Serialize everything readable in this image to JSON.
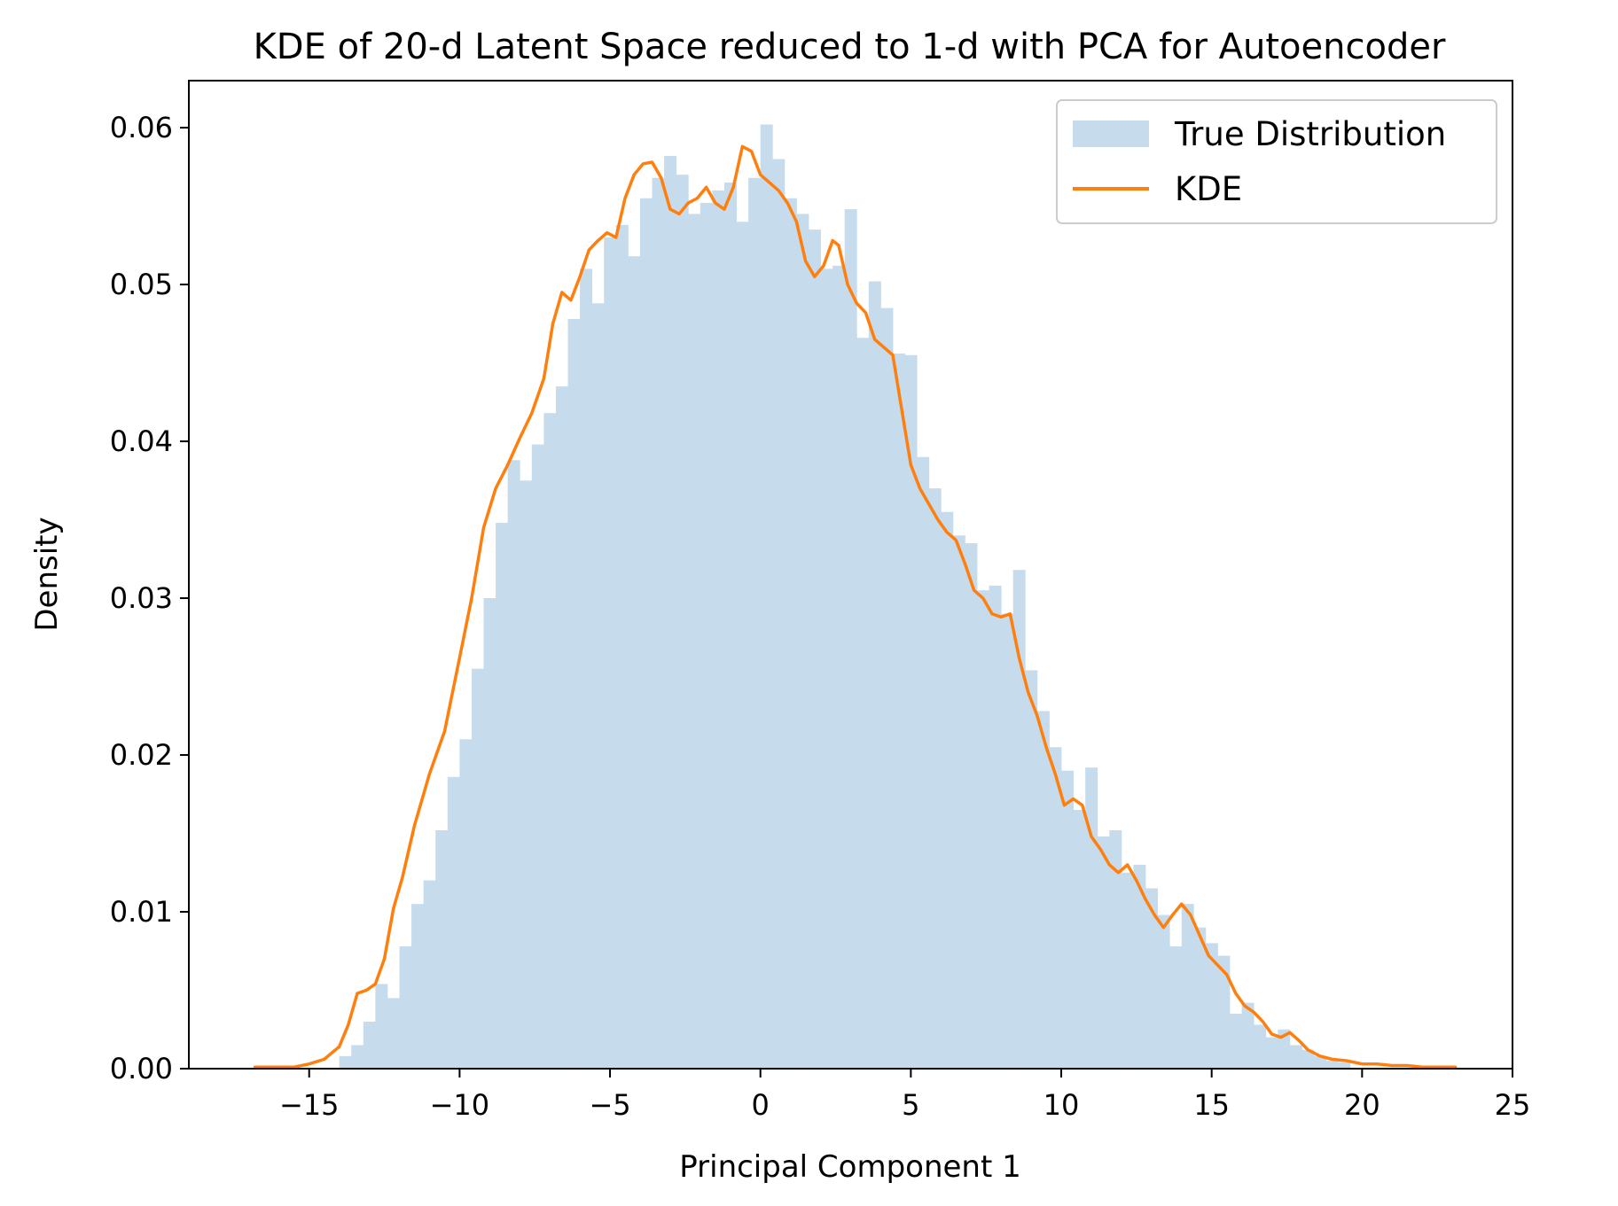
{
  "chart_data": {
    "type": "histogram",
    "title": "KDE of 20-d Latent Space reduced to 1-d with PCA for Autoencoder",
    "xlabel": "Principal Component 1",
    "ylabel": "Density",
    "xlim": [
      -19,
      25
    ],
    "ylim": [
      0,
      0.063
    ],
    "xticks": [
      -15,
      -10,
      -5,
      0,
      5,
      10,
      15,
      20,
      25
    ],
    "xtick_labels": [
      "−15",
      "−10",
      "−5",
      "0",
      "5",
      "10",
      "15",
      "20",
      "25"
    ],
    "yticks": [
      0,
      0.01,
      0.02,
      0.03,
      0.04,
      0.05,
      0.06
    ],
    "ytick_labels": [
      "0.00",
      "0.01",
      "0.02",
      "0.03",
      "0.04",
      "0.05",
      "0.06"
    ],
    "grid": false,
    "legend_position": "top-right",
    "colors": {
      "histogram": "#c6dbec",
      "kde": "#ff7f0e"
    },
    "histogram": {
      "name": "True Distribution",
      "bin_start": -14.0,
      "bin_width": 0.4,
      "densities": [
        0.0008,
        0.0015,
        0.003,
        0.0054,
        0.0045,
        0.0078,
        0.0105,
        0.012,
        0.0152,
        0.0186,
        0.021,
        0.0255,
        0.03,
        0.0348,
        0.0388,
        0.0375,
        0.0398,
        0.0418,
        0.0435,
        0.0478,
        0.051,
        0.0488,
        0.053,
        0.0538,
        0.0518,
        0.0555,
        0.0568,
        0.0582,
        0.057,
        0.0545,
        0.0552,
        0.056,
        0.0565,
        0.054,
        0.0568,
        0.0602,
        0.058,
        0.0555,
        0.0545,
        0.0535,
        0.051,
        0.0512,
        0.0548,
        0.0466,
        0.0502,
        0.0485,
        0.0456,
        0.0455,
        0.039,
        0.037,
        0.0355,
        0.034,
        0.0335,
        0.0305,
        0.0308,
        0.029,
        0.0318,
        0.0254,
        0.0228,
        0.0205,
        0.019,
        0.0165,
        0.0192,
        0.0148,
        0.0152,
        0.0125,
        0.013,
        0.0115,
        0.0098,
        0.0078,
        0.0105,
        0.009,
        0.008,
        0.0072,
        0.0035,
        0.0042,
        0.0028,
        0.002,
        0.0025,
        0.0015,
        0.0012,
        0.0008,
        0.0005,
        0.0004
      ]
    },
    "kde": {
      "name": "KDE",
      "x": [
        -16.8,
        -16.0,
        -15.5,
        -15.0,
        -14.5,
        -14.0,
        -13.7,
        -13.4,
        -13.1,
        -12.8,
        -12.5,
        -12.2,
        -11.9,
        -11.5,
        -11.0,
        -10.5,
        -10.0,
        -9.6,
        -9.2,
        -8.8,
        -8.4,
        -8.0,
        -7.6,
        -7.2,
        -6.9,
        -6.6,
        -6.3,
        -6.0,
        -5.7,
        -5.4,
        -5.1,
        -4.8,
        -4.5,
        -4.2,
        -3.9,
        -3.6,
        -3.3,
        -3.0,
        -2.7,
        -2.4,
        -2.1,
        -1.8,
        -1.5,
        -1.2,
        -0.9,
        -0.6,
        -0.3,
        0.0,
        0.3,
        0.6,
        0.9,
        1.2,
        1.5,
        1.8,
        2.1,
        2.4,
        2.6,
        2.9,
        3.2,
        3.5,
        3.8,
        4.1,
        4.4,
        4.7,
        5.0,
        5.3,
        5.6,
        5.9,
        6.2,
        6.5,
        6.8,
        7.1,
        7.4,
        7.7,
        8.0,
        8.3,
        8.6,
        8.9,
        9.2,
        9.5,
        9.8,
        10.1,
        10.4,
        10.7,
        11.0,
        11.3,
        11.6,
        11.9,
        12.2,
        12.5,
        12.8,
        13.1,
        13.4,
        13.7,
        14.0,
        14.3,
        14.6,
        14.9,
        15.2,
        15.5,
        15.8,
        16.1,
        16.4,
        16.7,
        17.0,
        17.3,
        17.6,
        17.9,
        18.2,
        18.6,
        19.0,
        19.5,
        20.0,
        20.5,
        21.0,
        21.5,
        22.0,
        22.5,
        23.1
      ],
      "y": [
        0.0001,
        0.0001,
        0.0001,
        0.0003,
        0.0006,
        0.0014,
        0.0028,
        0.0048,
        0.005,
        0.0054,
        0.007,
        0.0102,
        0.0122,
        0.0155,
        0.0188,
        0.0215,
        0.0262,
        0.03,
        0.0345,
        0.037,
        0.0385,
        0.0402,
        0.0418,
        0.044,
        0.0475,
        0.0495,
        0.049,
        0.0505,
        0.0522,
        0.0528,
        0.0533,
        0.053,
        0.0555,
        0.057,
        0.0577,
        0.0578,
        0.0568,
        0.0548,
        0.0545,
        0.0552,
        0.0555,
        0.0562,
        0.0552,
        0.0548,
        0.0562,
        0.0588,
        0.0585,
        0.057,
        0.0565,
        0.056,
        0.0552,
        0.054,
        0.0515,
        0.0505,
        0.0512,
        0.0528,
        0.0525,
        0.05,
        0.0488,
        0.0482,
        0.0465,
        0.046,
        0.0455,
        0.042,
        0.0385,
        0.037,
        0.036,
        0.035,
        0.0342,
        0.0337,
        0.0322,
        0.0305,
        0.03,
        0.029,
        0.0288,
        0.029,
        0.0262,
        0.024,
        0.0225,
        0.0205,
        0.0188,
        0.0168,
        0.0172,
        0.0168,
        0.0148,
        0.014,
        0.013,
        0.0125,
        0.013,
        0.012,
        0.0108,
        0.0098,
        0.009,
        0.0098,
        0.0105,
        0.0098,
        0.0085,
        0.0072,
        0.0066,
        0.006,
        0.0048,
        0.004,
        0.0036,
        0.003,
        0.0022,
        0.002,
        0.0023,
        0.0018,
        0.0012,
        0.0008,
        0.0006,
        0.0005,
        0.0003,
        0.0003,
        0.0002,
        0.0002,
        0.0001,
        0.0001,
        0.0001
      ]
    }
  }
}
